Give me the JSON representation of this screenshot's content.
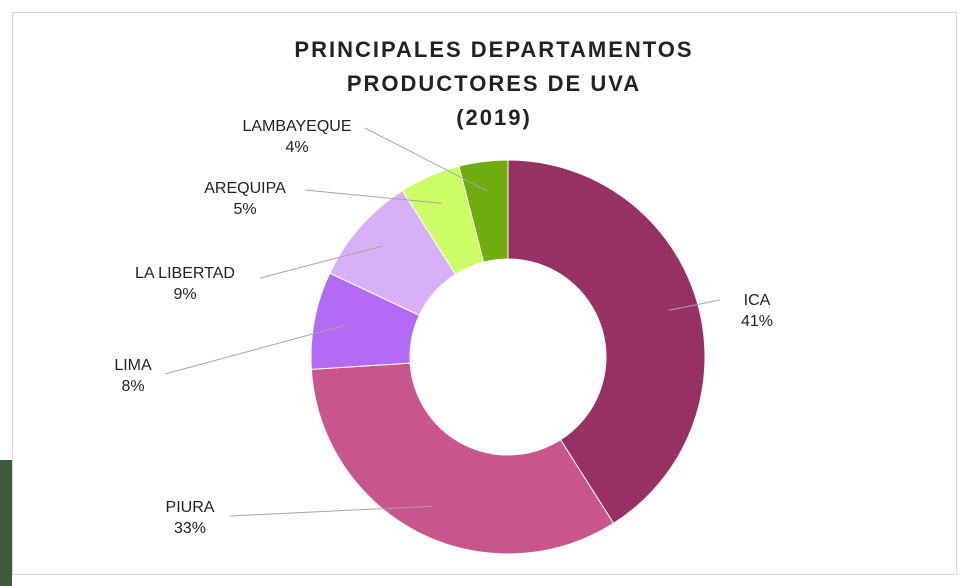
{
  "chart_data": {
    "type": "doughnut",
    "title": [
      "PRINCIPALES DEPARTAMENTOS",
      "PRODUCTORES DE UVA",
      "(2019)"
    ],
    "categories": [
      "ICA",
      "PIURA",
      "LIMA",
      "LA LIBERTAD",
      "AREQUIPA",
      "LAMBAYEQUE"
    ],
    "values": [
      41,
      33,
      8,
      9,
      5,
      4
    ],
    "value_labels": [
      "41%",
      "33%",
      "8%",
      "9%",
      "5%",
      "4%"
    ],
    "colors": [
      "#983163",
      "#c9558d",
      "#b36bf5",
      "#d8b0f7",
      "#ccfc66",
      "#6fad0f"
    ]
  }
}
